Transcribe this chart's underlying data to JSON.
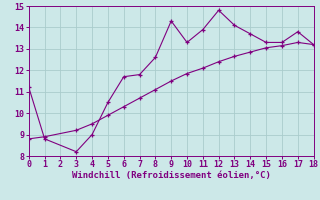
{
  "line1_x": [
    0,
    1,
    3,
    4,
    5,
    6,
    7,
    8,
    9,
    10,
    11,
    12,
    13,
    14,
    15,
    16,
    17,
    18
  ],
  "line1_y": [
    11.2,
    8.8,
    8.2,
    9.0,
    10.5,
    11.7,
    11.8,
    12.6,
    14.3,
    13.3,
    13.9,
    14.8,
    14.1,
    13.7,
    13.3,
    13.3,
    13.8,
    13.2
  ],
  "line2_x": [
    0,
    1,
    3,
    4,
    5,
    6,
    7,
    8,
    9,
    10,
    11,
    12,
    13,
    14,
    15,
    16,
    17,
    18
  ],
  "line2_y": [
    8.8,
    8.9,
    9.2,
    9.5,
    9.9,
    10.3,
    10.7,
    11.1,
    11.5,
    11.85,
    12.1,
    12.4,
    12.65,
    12.85,
    13.05,
    13.15,
    13.3,
    13.2
  ],
  "line_color": "#800080",
  "bg_color": "#cce8e8",
  "grid_color": "#aacccc",
  "xlabel": "Windchill (Refroidissement éolien,°C)",
  "xlim": [
    0,
    18
  ],
  "ylim": [
    8,
    15
  ],
  "xticks": [
    0,
    1,
    2,
    3,
    4,
    5,
    6,
    7,
    8,
    9,
    10,
    11,
    12,
    13,
    14,
    15,
    16,
    17,
    18
  ],
  "yticks": [
    8,
    9,
    10,
    11,
    12,
    13,
    14,
    15
  ],
  "tick_fontsize": 6,
  "xlabel_fontsize": 6.5,
  "marker": "+"
}
